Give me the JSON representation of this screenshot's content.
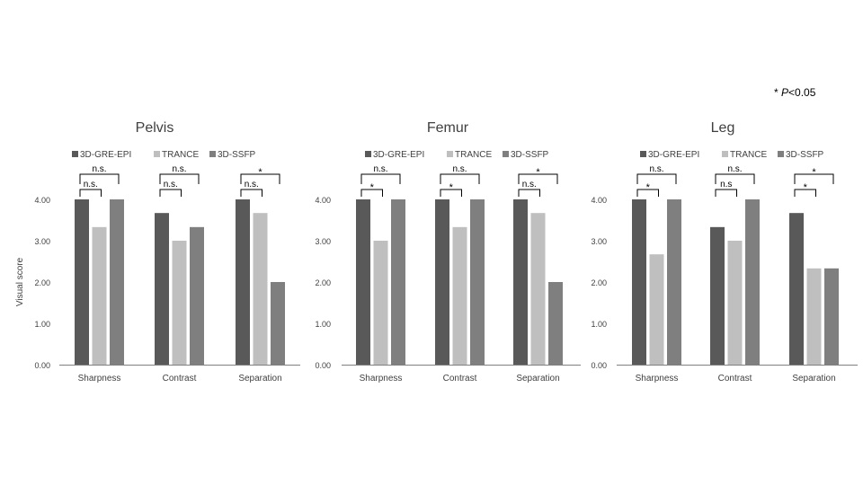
{
  "note": {
    "star": "*",
    "p": "P",
    "rest": "<0.05"
  },
  "y_axis_label": "Visual score",
  "chart_data": [
    {
      "type": "bar",
      "title": "Pelvis",
      "categories": [
        "Sharpness",
        "Contrast",
        "Separation"
      ],
      "series": [
        {
          "name": "3D-GRE-EPI",
          "values": [
            4.0,
            3.67,
            4.0
          ]
        },
        {
          "name": "TRANCE",
          "values": [
            3.33,
            3.0,
            3.67
          ]
        },
        {
          "name": "3D-SSFP",
          "values": [
            4.0,
            3.33,
            2.0
          ]
        }
      ],
      "ylabel": "Visual score",
      "ylim": [
        0,
        4
      ],
      "yticks": [
        "0.00",
        "1.00",
        "2.00",
        "3.00",
        "4.00"
      ],
      "legend": "top",
      "grid": false,
      "significance": [
        {
          "category": 0,
          "pair": [
            0,
            1
          ],
          "label": "n.s."
        },
        {
          "category": 0,
          "pair": [
            0,
            2
          ],
          "label": "n.s."
        },
        {
          "category": 1,
          "pair": [
            0,
            1
          ],
          "label": "n.s."
        },
        {
          "category": 1,
          "pair": [
            0,
            2
          ],
          "label": "n.s."
        },
        {
          "category": 2,
          "pair": [
            0,
            1
          ],
          "label": "n.s."
        },
        {
          "category": 2,
          "pair": [
            0,
            2
          ],
          "label": "*"
        }
      ]
    },
    {
      "type": "bar",
      "title": "Femur",
      "categories": [
        "Sharpness",
        "Contrast",
        "Separation"
      ],
      "series": [
        {
          "name": "3D-GRE-EPI",
          "values": [
            4.0,
            4.0,
            4.0
          ]
        },
        {
          "name": "TRANCE",
          "values": [
            3.0,
            3.33,
            3.67
          ]
        },
        {
          "name": "3D-SSFP",
          "values": [
            4.0,
            4.0,
            2.0
          ]
        }
      ],
      "ylim": [
        0,
        4
      ],
      "yticks": [
        "0.00",
        "1.00",
        "2.00",
        "3.00",
        "4.00"
      ],
      "legend": "top",
      "grid": false,
      "significance": [
        {
          "category": 0,
          "pair": [
            0,
            1
          ],
          "label": "*"
        },
        {
          "category": 0,
          "pair": [
            0,
            2
          ],
          "label": "n.s."
        },
        {
          "category": 1,
          "pair": [
            0,
            1
          ],
          "label": "*"
        },
        {
          "category": 1,
          "pair": [
            0,
            2
          ],
          "label": "n.s."
        },
        {
          "category": 2,
          "pair": [
            0,
            1
          ],
          "label": "n.s."
        },
        {
          "category": 2,
          "pair": [
            0,
            2
          ],
          "label": "*"
        }
      ]
    },
    {
      "type": "bar",
      "title": "Leg",
      "categories": [
        "Sharpness",
        "Contrast",
        "Separation"
      ],
      "series": [
        {
          "name": "3D-GRE-EPI",
          "values": [
            4.0,
            3.33,
            3.67
          ]
        },
        {
          "name": "TRANCE",
          "values": [
            2.67,
            3.0,
            2.33
          ]
        },
        {
          "name": "3D-SSFP",
          "values": [
            4.0,
            4.0,
            2.33
          ]
        }
      ],
      "ylim": [
        0,
        4
      ],
      "yticks": [
        "0.00",
        "1.00",
        "2.00",
        "3.00",
        "4.00"
      ],
      "legend": "top",
      "grid": false,
      "significance": [
        {
          "category": 0,
          "pair": [
            0,
            1
          ],
          "label": "*"
        },
        {
          "category": 0,
          "pair": [
            0,
            2
          ],
          "label": "n.s."
        },
        {
          "category": 1,
          "pair": [
            0,
            1
          ],
          "label": "n.s"
        },
        {
          "category": 1,
          "pair": [
            0,
            2
          ],
          "label": "n.s."
        },
        {
          "category": 2,
          "pair": [
            0,
            1
          ],
          "label": "*"
        },
        {
          "category": 2,
          "pair": [
            0,
            2
          ],
          "label": "*"
        }
      ]
    }
  ],
  "colors": {
    "3D-GRE-EPI": "#595959",
    "TRANCE": "#bfbfbf",
    "3D-SSFP": "#7f7f7f",
    "axis": "#000000",
    "text": "#404040"
  }
}
